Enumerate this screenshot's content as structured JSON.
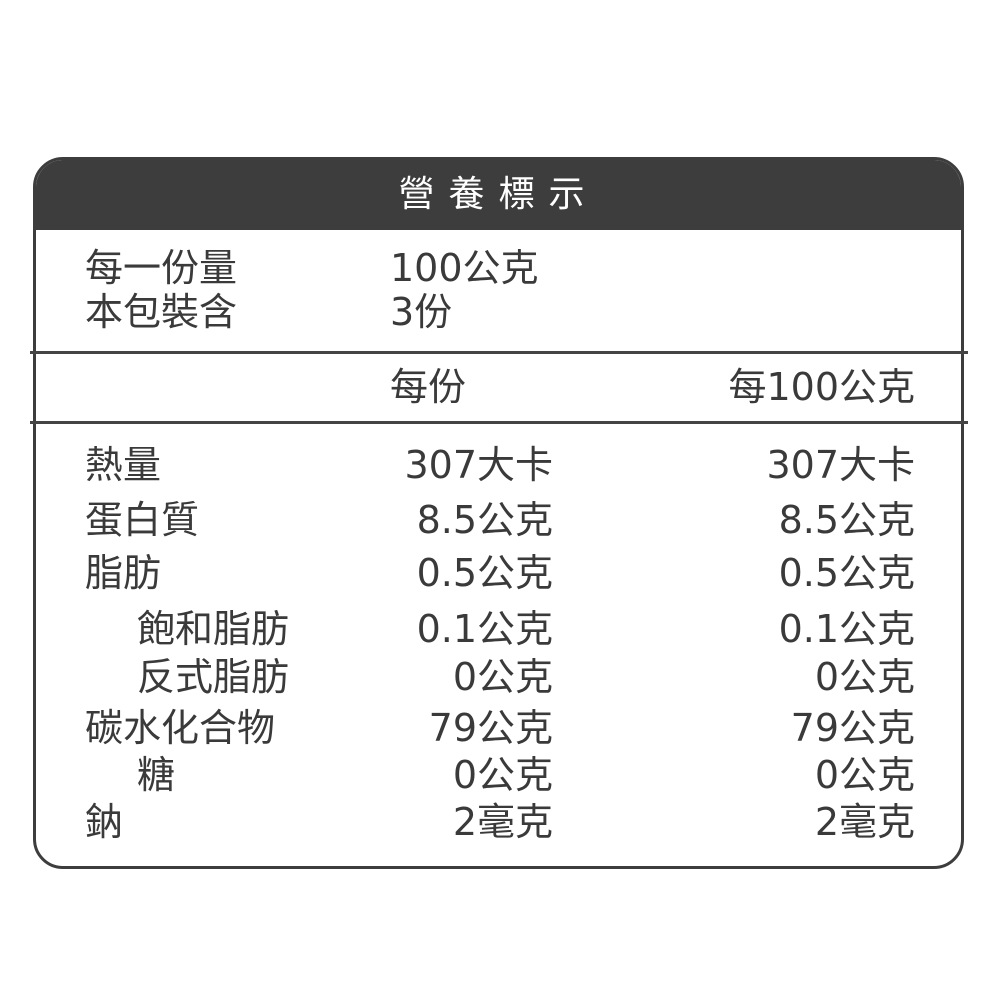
{
  "title": "營養標示",
  "serving": {
    "size_label": "每一份量",
    "size_value": "100公克",
    "count_label": "本包裝含",
    "count_value": "3份"
  },
  "columns": {
    "per_serving": "每份",
    "per_100g": "每100公克"
  },
  "rows": [
    {
      "name": "熱量",
      "per_serving": "307大卡",
      "per_100g": "307大卡"
    },
    {
      "name": "蛋白質",
      "per_serving": "8.5公克",
      "per_100g": "8.5公克"
    },
    {
      "name": "脂肪",
      "per_serving": "0.5公克",
      "per_100g": "0.5公克"
    },
    {
      "name": "飽和脂肪",
      "per_serving": "0.1公克",
      "per_100g": "0.1公克"
    },
    {
      "name": "反式脂肪",
      "per_serving": "0公克",
      "per_100g": "0公克"
    },
    {
      "name": "碳水化合物",
      "per_serving": "79公克",
      "per_100g": "79公克"
    },
    {
      "name": "糖",
      "per_serving": "0公克",
      "per_100g": "0公克"
    },
    {
      "name": "鈉",
      "per_serving": "2毫克",
      "per_100g": "2毫克"
    }
  ],
  "colors": {
    "header_bg": "#3d3d3d",
    "text": "#3a3a3a"
  }
}
